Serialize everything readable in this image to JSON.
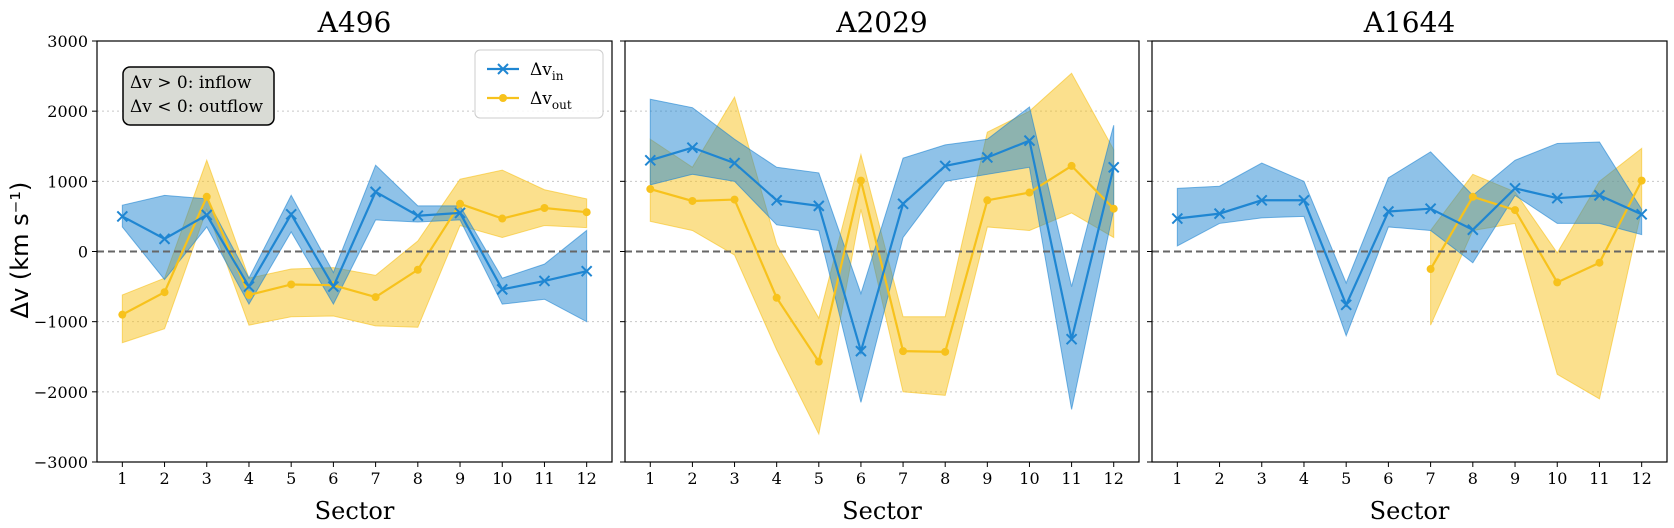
{
  "chart_data": {
    "type": "line",
    "ylabel": "Δv (km s⁻¹)",
    "xlabel": "Sector",
    "ylim": [
      -3000,
      3000
    ],
    "yticks": [
      -3000,
      -2000,
      -1000,
      0,
      1000,
      2000,
      3000
    ],
    "ytick_labels": [
      "−3000",
      "−2000",
      "−1000",
      "0",
      "1000",
      "2000",
      "3000"
    ],
    "x": [
      1,
      2,
      3,
      4,
      5,
      6,
      7,
      8,
      9,
      10,
      11,
      12
    ],
    "xtick_labels": [
      "1",
      "2",
      "3",
      "4",
      "5",
      "6",
      "7",
      "8",
      "9",
      "10",
      "11",
      "12"
    ],
    "colors": {
      "in": "#1f86d2",
      "out": "#f7c21c"
    },
    "legend": {
      "location": "top-right of first panel",
      "in_label": "Δv",
      "in_sub": "in",
      "out_label": "Δv",
      "out_sub": "out"
    },
    "annotation": {
      "line1": "Δv > 0: inflow",
      "line2": "Δv < 0: outflow"
    },
    "panels": [
      {
        "title": "A496",
        "series": [
          {
            "name": "in",
            "values": [
              500,
              180,
              520,
              -500,
              530,
              -500,
              850,
              510,
              550,
              -540,
              -420,
              -280
            ],
            "lower": [
              350,
              -400,
              350,
              -750,
              280,
              -750,
              450,
              420,
              450,
              -750,
              -680,
              -1000
            ],
            "upper": [
              660,
              800,
              750,
              -380,
              800,
              -300,
              1230,
              650,
              650,
              -380,
              -180,
              300
            ]
          },
          {
            "name": "out",
            "values": [
              -900,
              -580,
              780,
              -620,
              -470,
              -480,
              -650,
              -260,
              680,
              470,
              620,
              560
            ],
            "lower": [
              -1300,
              -1100,
              600,
              -1050,
              -930,
              -920,
              -1060,
              -1080,
              370,
              200,
              370,
              340
            ],
            "upper": [
              -620,
              -380,
              1300,
              -380,
              -250,
              -230,
              -340,
              150,
              1030,
              1160,
              880,
              750
            ]
          }
        ]
      },
      {
        "title": "A2029",
        "series": [
          {
            "name": "in",
            "values": [
              1300,
              1480,
              1260,
              730,
              650,
              -1420,
              680,
              1220,
              1340,
              1580,
              -1250,
              1200
            ],
            "lower": [
              950,
              1100,
              1000,
              380,
              300,
              -2150,
              200,
              1000,
              1100,
              1200,
              -2250,
              600
            ],
            "upper": [
              2170,
              2050,
              1600,
              1200,
              1120,
              -600,
              1330,
              1520,
              1600,
              2060,
              -500,
              1800
            ]
          },
          {
            "name": "out",
            "values": [
              890,
              720,
              740,
              -660,
              -1570,
              1010,
              -1420,
              -1430,
              730,
              840,
              1220,
              610
            ],
            "lower": [
              430,
              300,
              -50,
              -1400,
              -2600,
              600,
              -2000,
              -2050,
              350,
              300,
              550,
              200
            ],
            "upper": [
              1600,
              1200,
              2200,
              100,
              -950,
              1380,
              -930,
              -930,
              1700,
              2000,
              2540,
              1450
            ]
          }
        ]
      },
      {
        "title": "A1644",
        "series": [
          {
            "name": "in",
            "values": [
              470,
              540,
              730,
              730,
              -760,
              570,
              610,
              310,
              900,
              760,
              800,
              530
            ],
            "lower": [
              80,
              400,
              480,
              500,
              -1200,
              350,
              300,
              -160,
              800,
              400,
              400,
              240
            ],
            "upper": [
              900,
              930,
              1260,
              1000,
              -450,
              1050,
              1420,
              800,
              1300,
              1540,
              1560,
              600
            ]
          },
          {
            "name": "out",
            "start_index": 6,
            "values": [
              null,
              null,
              null,
              null,
              null,
              null,
              -250,
              780,
              590,
              -440,
              -160,
              1010
            ],
            "lower": [
              null,
              null,
              null,
              null,
              null,
              null,
              -1050,
              300,
              400,
              -1750,
              -2100,
              600
            ],
            "upper": [
              null,
              null,
              null,
              null,
              null,
              null,
              300,
              1100,
              850,
              -20,
              1000,
              1470
            ]
          }
        ]
      }
    ]
  }
}
